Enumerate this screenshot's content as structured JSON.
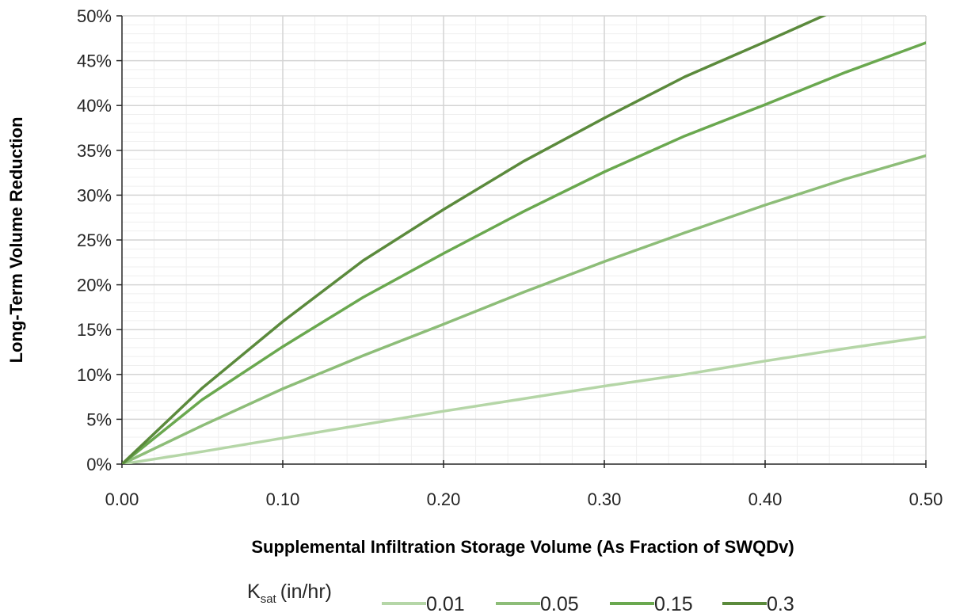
{
  "chart_data": {
    "type": "line",
    "xlabel": "Supplemental Infiltration Storage Volume (As Fraction of SWQDv)",
    "ylabel": "Long-Term Volume Reduction",
    "xlim": [
      0,
      0.5
    ],
    "ylim": [
      0,
      0.5
    ],
    "x_ticks": [
      "0.00",
      "0.10",
      "0.20",
      "0.30",
      "0.40",
      "0.50"
    ],
    "y_ticks": [
      "0%",
      "5%",
      "10%",
      "15%",
      "20%",
      "25%",
      "30%",
      "35%",
      "40%",
      "45%",
      "50%"
    ],
    "grid": "major and minor",
    "legend": {
      "title_main": "K",
      "title_sub": "sat",
      "title_unit": "(in/hr)",
      "placement": "bottom"
    },
    "x": [
      0,
      0.05,
      0.1,
      0.15,
      0.2,
      0.25,
      0.3,
      0.35,
      0.4,
      0.45,
      0.5
    ],
    "series": [
      {
        "name": "0.01",
        "color": "#b5d6a7",
        "values": [
          0,
          0.014,
          0.029,
          0.044,
          0.059,
          0.073,
          0.087,
          0.1,
          0.115,
          0.129,
          0.142
        ]
      },
      {
        "name": "0.05",
        "color": "#8dbd78",
        "values": [
          0,
          0.043,
          0.084,
          0.121,
          0.156,
          0.192,
          0.226,
          0.258,
          0.289,
          0.318,
          0.344
        ]
      },
      {
        "name": "0.15",
        "color": "#6aa84f",
        "values": [
          0,
          0.072,
          0.131,
          0.186,
          0.235,
          0.282,
          0.326,
          0.366,
          0.401,
          0.437,
          0.47
        ]
      },
      {
        "name": "0.3",
        "color": "#5b8a3c",
        "values": [
          0,
          0.085,
          0.159,
          0.227,
          0.284,
          0.338,
          0.386,
          0.432,
          0.471,
          0.511,
          0.55
        ]
      }
    ]
  }
}
